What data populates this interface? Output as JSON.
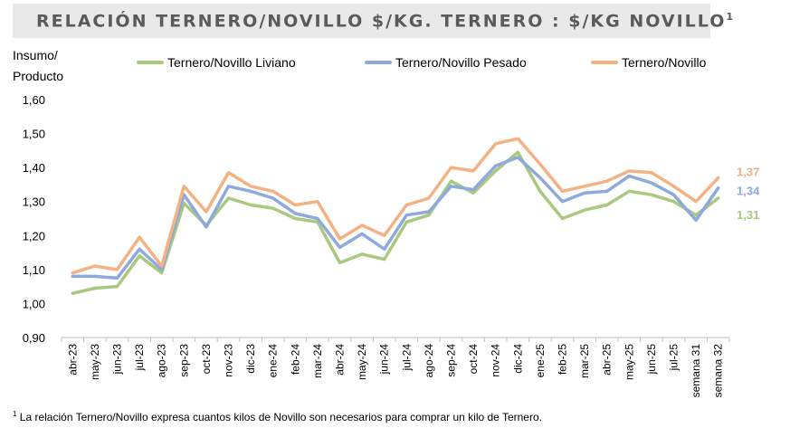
{
  "title": "RELACIÓN TERNERO/NOVILLO $/KG. TERNERO : $/KG NOVILLO",
  "title_sup": "1",
  "ylabel_line1": "Insumo/",
  "ylabel_line2": "Producto",
  "footnote_sup": "1",
  "footnote": " La relación Ternero/Novillo expresa cuantos kilos de Novillo son necesarios para comprar un kilo de Ternero.",
  "chart_data": {
    "type": "line",
    "ylim": [
      0.9,
      1.6
    ],
    "yticks": [
      "0,90",
      "1,00",
      "1,10",
      "1,20",
      "1,30",
      "1,40",
      "1,50",
      "1,60"
    ],
    "legend_position": "top",
    "grid": false,
    "categories": [
      "abr-23",
      "may-23",
      "jun-23",
      "jul-23",
      "ago-23",
      "sep-23",
      "oct-23",
      "nov-23",
      "dic-23",
      "ene-24",
      "feb-24",
      "mar-24",
      "abr-24",
      "may-24",
      "jun-24",
      "jul-24",
      "ago-24",
      "sep-24",
      "oct-24",
      "nov-24",
      "dic-24",
      "ene-25",
      "feb-25",
      "mar-25",
      "abr-25",
      "may-25",
      "jun-25",
      "jul-25",
      "semana 31",
      "semana 32"
    ],
    "series": [
      {
        "name": "Ternero/Novillo Liviano",
        "color": "#a9c97f",
        "values": [
          1.03,
          1.045,
          1.05,
          1.14,
          1.09,
          1.295,
          1.23,
          1.31,
          1.29,
          1.28,
          1.25,
          1.24,
          1.12,
          1.145,
          1.13,
          1.24,
          1.26,
          1.36,
          1.325,
          1.39,
          1.445,
          1.33,
          1.25,
          1.275,
          1.29,
          1.33,
          1.32,
          1.3,
          1.26,
          1.31
        ],
        "end_label": "1,31"
      },
      {
        "name": "Ternero/Novillo Pesado",
        "color": "#8ea9db",
        "values": [
          1.08,
          1.08,
          1.075,
          1.16,
          1.1,
          1.32,
          1.225,
          1.345,
          1.33,
          1.31,
          1.265,
          1.25,
          1.165,
          1.205,
          1.16,
          1.26,
          1.27,
          1.345,
          1.335,
          1.405,
          1.43,
          1.37,
          1.3,
          1.325,
          1.33,
          1.375,
          1.355,
          1.32,
          1.245,
          1.34
        ],
        "end_label": "1,34"
      },
      {
        "name": "Ternero/Novillo",
        "color": "#f4b183",
        "values": [
          1.09,
          1.11,
          1.1,
          1.195,
          1.11,
          1.345,
          1.27,
          1.385,
          1.345,
          1.33,
          1.29,
          1.3,
          1.19,
          1.23,
          1.2,
          1.29,
          1.31,
          1.4,
          1.39,
          1.47,
          1.485,
          1.41,
          1.33,
          1.345,
          1.36,
          1.39,
          1.385,
          1.345,
          1.3,
          1.37
        ],
        "end_label": "1,37"
      }
    ]
  }
}
